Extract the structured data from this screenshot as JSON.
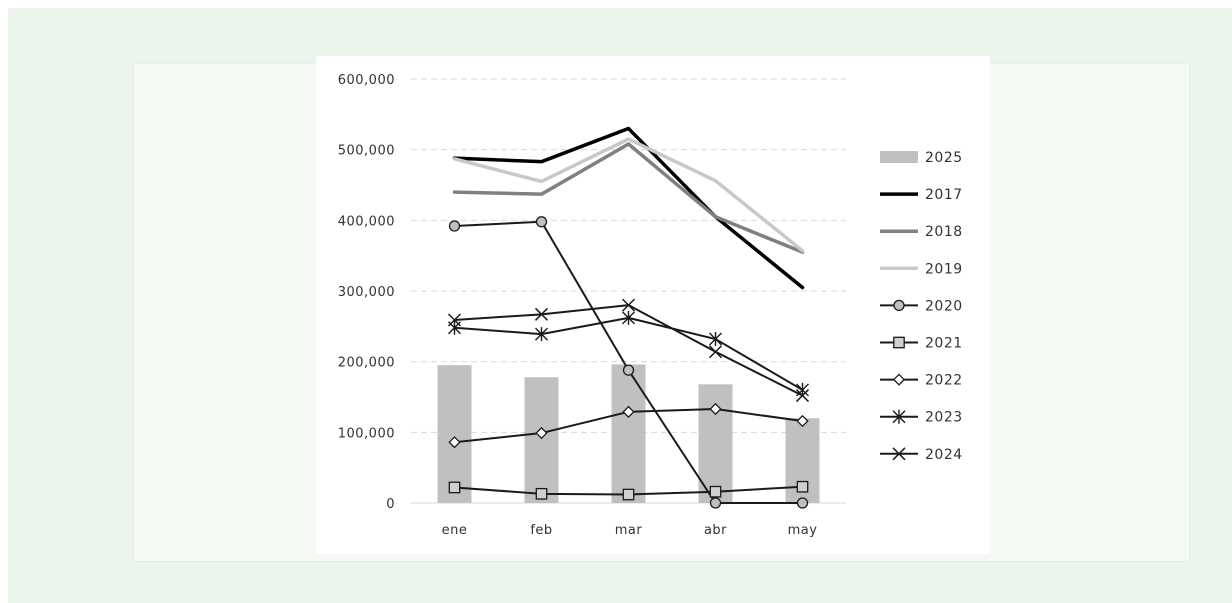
{
  "chart_data": {
    "type": "bar",
    "categories": [
      "ene",
      "feb",
      "mar",
      "abr",
      "may"
    ],
    "ylim": [
      0,
      600000
    ],
    "yticks": [
      0,
      100000,
      200000,
      300000,
      400000,
      500000,
      600000
    ],
    "ytick_labels": [
      "0",
      "100,000",
      "200,000",
      "300,000",
      "400,000",
      "500,000",
      "600,000"
    ],
    "grid": true,
    "legend_position": "right",
    "title": "",
    "xlabel": "",
    "ylabel": "",
    "series": [
      {
        "name": "2025",
        "kind": "bar",
        "color": "#c0c0c0",
        "values": [
          195000,
          178000,
          196000,
          168000,
          120000
        ]
      },
      {
        "name": "2017",
        "kind": "line",
        "color": "#000000",
        "width": 3.5,
        "marker": "none",
        "values": [
          488000,
          483000,
          530000,
          405000,
          305000
        ]
      },
      {
        "name": "2018",
        "kind": "line",
        "color": "#808080",
        "width": 3.5,
        "marker": "none",
        "values": [
          440000,
          437000,
          508000,
          405000,
          355000
        ]
      },
      {
        "name": "2019",
        "kind": "line",
        "color": "#c8c8c8",
        "width": 3.5,
        "marker": "none",
        "values": [
          487000,
          455000,
          515000,
          456000,
          357000
        ]
      },
      {
        "name": "2020",
        "kind": "line",
        "color": "#1a1a1a",
        "width": 2,
        "marker": "circle",
        "values": [
          392000,
          398000,
          188000,
          0,
          0
        ]
      },
      {
        "name": "2021",
        "kind": "line",
        "color": "#1a1a1a",
        "width": 2,
        "marker": "square",
        "values": [
          22000,
          13000,
          12000,
          16000,
          23000
        ]
      },
      {
        "name": "2022",
        "kind": "line",
        "color": "#1a1a1a",
        "width": 2,
        "marker": "diamond",
        "values": [
          86000,
          99000,
          129000,
          133000,
          116000
        ]
      },
      {
        "name": "2023",
        "kind": "line",
        "color": "#1a1a1a",
        "width": 2,
        "marker": "asterisk",
        "values": [
          248000,
          239000,
          262000,
          232000,
          160000
        ]
      },
      {
        "name": "2024",
        "kind": "line",
        "color": "#1a1a1a",
        "width": 2,
        "marker": "x",
        "values": [
          259000,
          267000,
          280000,
          214000,
          152000
        ]
      }
    ]
  }
}
